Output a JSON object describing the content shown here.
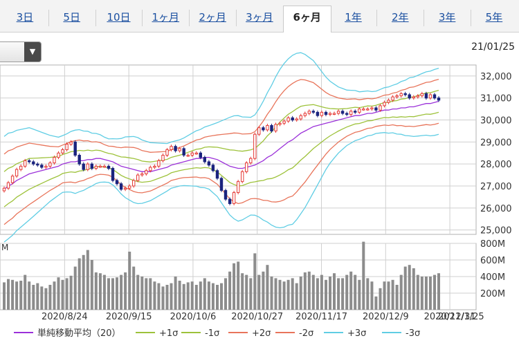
{
  "tabs": [
    {
      "label": "3日",
      "active": false
    },
    {
      "label": "5日",
      "active": false
    },
    {
      "label": "10日",
      "active": false
    },
    {
      "label": "1ヶ月",
      "active": false
    },
    {
      "label": "2ヶ月",
      "active": false
    },
    {
      "label": "3ヶ月",
      "active": false
    },
    {
      "label": "6ヶ月",
      "active": true
    },
    {
      "label": "1年",
      "active": false
    },
    {
      "label": "2年",
      "active": false
    },
    {
      "label": "3年",
      "active": false
    },
    {
      "label": "5年",
      "active": false
    }
  ],
  "selector": {
    "icon": "chevron-down-icon"
  },
  "date_label": "21/01/25",
  "colors": {
    "up": "#e53935",
    "down": "#1a237e",
    "sma": "#9b30d9",
    "s1": "#9dc23a",
    "s2": "#e8745a",
    "s3": "#5fcde4",
    "volume": "#8c8c8c",
    "grid": "#cfcfcf"
  },
  "chart_data": {
    "type": "candlestick",
    "price_ylim": [
      24800,
      32500
    ],
    "price_ticks": [
      "32,000",
      "31,000",
      "30,000",
      "29,000",
      "28,000",
      "27,000",
      "26,000",
      "25,000"
    ],
    "price_tick_values": [
      32000,
      31000,
      30000,
      29000,
      28000,
      27000,
      26000,
      25000
    ],
    "volume_label": "M",
    "volume_ylim": [
      0,
      800
    ],
    "volume_ticks": [
      "800M",
      "600M",
      "400M",
      "200M"
    ],
    "volume_tick_values": [
      800,
      600,
      400,
      200
    ],
    "x_labels": [
      "2020/8/24",
      "2020/9/15",
      "2020/10/6",
      "2020/10/27",
      "2020/11/17",
      "2020/12/9",
      "2020/12/31",
      "2021/1/25"
    ],
    "x_label_positions": [
      0.1357,
      0.2706,
      0.4054,
      0.5403,
      0.6752,
      0.81,
      0.9449,
      1.0
    ],
    "close": [
      26900,
      27150,
      27450,
      27750,
      27900,
      28150,
      28100,
      28000,
      27950,
      27850,
      27900,
      28050,
      28300,
      28500,
      28650,
      28900,
      29000,
      28400,
      28000,
      27750,
      28000,
      27800,
      27900,
      27900,
      27900,
      27800,
      27250,
      27100,
      26850,
      26900,
      27000,
      27250,
      27500,
      27550,
      27700,
      27850,
      27900,
      28150,
      28400,
      28650,
      28800,
      28600,
      28700,
      28400,
      28400,
      28500,
      28500,
      28300,
      28100,
      27950,
      27700,
      27350,
      26800,
      26400,
      26200,
      26700,
      27200,
      27650,
      28050,
      28250,
      29350,
      29650,
      29550,
      29750,
      29500,
      29800,
      29850,
      29950,
      30100,
      30000,
      30050,
      30200,
      30300,
      30400,
      30350,
      30200,
      30350,
      30250,
      30300,
      30300,
      30400,
      30300,
      30250,
      30400,
      30350,
      30500,
      30500,
      30500,
      30550,
      30450,
      30650,
      30800,
      30900,
      31050,
      31100,
      31200,
      31150,
      31000,
      31050,
      31100,
      31200,
      31000,
      31150,
      31000,
      30900
    ],
    "sma20": [
      26850,
      27000,
      27100,
      27250,
      27350,
      27450,
      27550,
      27600,
      27650,
      27700,
      27750,
      27800,
      27850,
      27900,
      28000,
      28050,
      28100,
      28100,
      28150,
      28150,
      28200,
      28200,
      28250,
      28250,
      28200,
      28150,
      28100,
      28000,
      27900,
      27850,
      27800,
      27750,
      27700,
      27650,
      27650,
      27650,
      27700,
      27750,
      27800,
      27850,
      27950,
      28000,
      28050,
      28100,
      28150,
      28200,
      28250,
      28250,
      28300,
      28300,
      28250,
      28200,
      28100,
      28000,
      27900,
      27850,
      27800,
      27800,
      27850,
      27900,
      27950,
      28050,
      28150,
      28300,
      28400,
      28550,
      28700,
      28850,
      29000,
      29100,
      29250,
      29400,
      29500,
      29600,
      29700,
      29750,
      29800,
      29850,
      29900,
      29950,
      30000,
      30050,
      30100,
      30150,
      30200,
      30200,
      30250,
      30300,
      30300,
      30350,
      30400,
      30450,
      30450,
      30500,
      30500,
      30550,
      30550,
      30600,
      30600,
      30650,
      30700,
      30750,
      30750,
      30800,
      30850
    ],
    "sigma": [
      800,
      800,
      780,
      760,
      740,
      720,
      700,
      660,
      620,
      580,
      540,
      500,
      470,
      440,
      430,
      440,
      460,
      480,
      470,
      450,
      430,
      400,
      380,
      360,
      340,
      330,
      350,
      380,
      420,
      460,
      480,
      500,
      500,
      480,
      460,
      440,
      420,
      400,
      380,
      360,
      350,
      350,
      350,
      360,
      380,
      400,
      420,
      440,
      460,
      480,
      520,
      560,
      620,
      680,
      740,
      780,
      800,
      780,
      760,
      740,
      760,
      820,
      900,
      980,
      1060,
      1140,
      1200,
      1240,
      1260,
      1280,
      1260,
      1220,
      1160,
      1080,
      1000,
      900,
      800,
      700,
      620,
      560,
      500,
      460,
      420,
      400,
      380,
      360,
      350,
      340,
      330,
      320,
      330,
      340,
      350,
      360,
      380,
      400,
      420,
      440,
      450,
      460,
      470,
      480,
      490,
      500,
      500
    ],
    "volume": [
      330,
      370,
      360,
      340,
      350,
      420,
      340,
      300,
      320,
      280,
      260,
      300,
      340,
      390,
      360,
      380,
      410,
      520,
      620,
      660,
      720,
      600,
      450,
      440,
      420,
      380,
      380,
      390,
      420,
      450,
      700,
      520,
      420,
      400,
      380,
      380,
      340,
      320,
      280,
      300,
      320,
      400,
      350,
      310,
      330,
      340,
      300,
      340,
      380,
      340,
      320,
      300,
      320,
      380,
      460,
      560,
      580,
      440,
      420,
      380,
      680,
      420,
      460,
      540,
      400,
      380,
      360,
      340,
      360,
      380,
      320,
      400,
      450,
      460,
      420,
      380,
      420,
      360,
      400,
      440,
      380,
      380,
      420,
      460,
      420,
      360,
      820,
      380,
      340,
      160,
      260,
      340,
      340,
      360,
      300,
      420,
      520,
      540,
      500,
      420,
      400,
      400,
      400,
      420,
      440
    ]
  },
  "legend": {
    "items": [
      {
        "label": "単純移動平均（20）",
        "color": "#9b30d9"
      },
      {
        "label": "+1σ",
        "color": "#9dc23a"
      },
      {
        "label": "-1σ",
        "color": "#9dc23a"
      },
      {
        "label": "+2σ",
        "color": "#e8745a"
      },
      {
        "label": "-2σ",
        "color": "#e8745a"
      },
      {
        "label": "+3σ",
        "color": "#5fcde4"
      },
      {
        "label": "-3σ",
        "color": "#5fcde4"
      }
    ]
  }
}
